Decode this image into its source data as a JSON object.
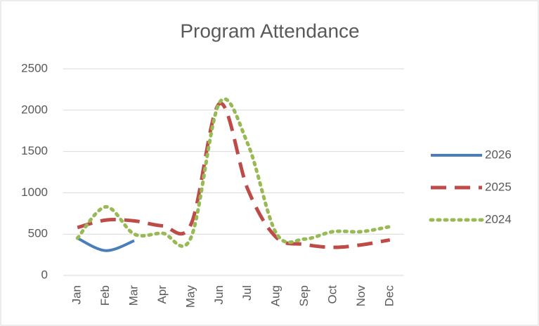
{
  "chart_data": {
    "type": "line",
    "title": "Program Attendance",
    "categories": [
      "Jan",
      "Feb",
      "Mar",
      "Apr",
      "May",
      "Jun",
      "Jul",
      "Aug",
      "Sep",
      "Oct",
      "Nov",
      "Dec"
    ],
    "series": [
      {
        "name": "2026",
        "color": "#4a7ebb",
        "dash": "solid",
        "values": [
          450,
          300,
          420,
          null,
          null,
          null,
          null,
          null,
          null,
          null,
          null,
          null
        ]
      },
      {
        "name": "2025",
        "color": "#be4b48",
        "dash": "dashed",
        "values": [
          580,
          670,
          660,
          600,
          620,
          2080,
          1040,
          460,
          375,
          340,
          370,
          430
        ]
      },
      {
        "name": "2024",
        "color": "#98b954",
        "dash": "dotted",
        "values": [
          450,
          830,
          500,
          510,
          460,
          2090,
          1590,
          510,
          440,
          530,
          530,
          590
        ]
      }
    ],
    "ylim": [
      0,
      2500
    ],
    "yticks": [
      0,
      500,
      1000,
      1500,
      2000,
      2500
    ],
    "grid": true,
    "smooth": true,
    "legend": "right"
  }
}
